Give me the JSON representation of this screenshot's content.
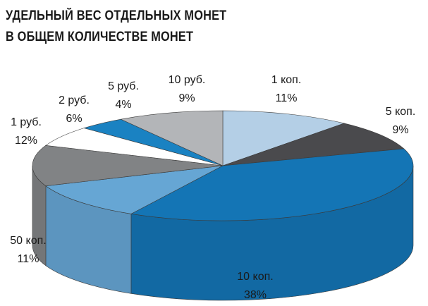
{
  "title_lines": [
    "УДЕЛЬНЫЙ ВЕС ОТДЕЛЬНЫХ МОНЕТ",
    "В ОБЩЕМ КОЛИЧЕСТВЕ МОНЕТ"
  ],
  "chart_data": {
    "type": "pie",
    "title": "УДЕЛЬНЫЙ ВЕС ОТДЕЛЬНЫХ МОНЕТ В ОБЩЕМ КОЛИЧЕСТВЕ МОНЕТ",
    "style": "3d",
    "slices": [
      {
        "label": "1 коп.",
        "value": 11,
        "value_label": "11%",
        "color": "#b4cfe6"
      },
      {
        "label": "5 коп.",
        "value": 9,
        "value_label": "9%",
        "color": "#4a4a4d"
      },
      {
        "label": "10 коп.",
        "value": 38,
        "value_label": "38%",
        "color": "#1475b5"
      },
      {
        "label": "50 коп.",
        "value": 11,
        "value_label": "11%",
        "color": "#66a6d4"
      },
      {
        "label": "1 руб.",
        "value": 12,
        "value_label": "12%",
        "color": "#818385"
      },
      {
        "label": "2 руб.",
        "value": 6,
        "value_label": "6%",
        "color": "#ffffff"
      },
      {
        "label": "5 руб.",
        "value": 4,
        "value_label": "4%",
        "color": "#1a82c2"
      },
      {
        "label": "10 руб.",
        "value": 9,
        "value_label": "9%",
        "color": "#b3b5b8"
      }
    ]
  }
}
